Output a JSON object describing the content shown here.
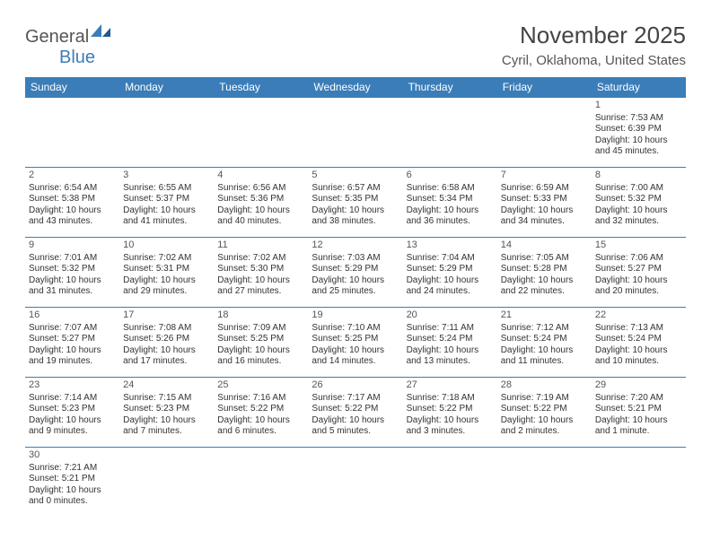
{
  "brand": {
    "part1": "General",
    "part2": "Blue"
  },
  "header": {
    "month_title": "November 2025",
    "location": "Cyril, Oklahoma, United States"
  },
  "theme": {
    "header_bg": "#3b7db8",
    "header_fg": "#ffffff",
    "cell_border": "#3b7db8",
    "text": "#333333",
    "muted": "#555555",
    "background": "#ffffff"
  },
  "calendar": {
    "day_headers": [
      "Sunday",
      "Monday",
      "Tuesday",
      "Wednesday",
      "Thursday",
      "Friday",
      "Saturday"
    ],
    "weeks": [
      [
        null,
        null,
        null,
        null,
        null,
        null,
        {
          "n": "1",
          "sr": "7:53 AM",
          "ss": "6:39 PM",
          "dl": "10 hours and 45 minutes."
        }
      ],
      [
        {
          "n": "2",
          "sr": "6:54 AM",
          "ss": "5:38 PM",
          "dl": "10 hours and 43 minutes."
        },
        {
          "n": "3",
          "sr": "6:55 AM",
          "ss": "5:37 PM",
          "dl": "10 hours and 41 minutes."
        },
        {
          "n": "4",
          "sr": "6:56 AM",
          "ss": "5:36 PM",
          "dl": "10 hours and 40 minutes."
        },
        {
          "n": "5",
          "sr": "6:57 AM",
          "ss": "5:35 PM",
          "dl": "10 hours and 38 minutes."
        },
        {
          "n": "6",
          "sr": "6:58 AM",
          "ss": "5:34 PM",
          "dl": "10 hours and 36 minutes."
        },
        {
          "n": "7",
          "sr": "6:59 AM",
          "ss": "5:33 PM",
          "dl": "10 hours and 34 minutes."
        },
        {
          "n": "8",
          "sr": "7:00 AM",
          "ss": "5:32 PM",
          "dl": "10 hours and 32 minutes."
        }
      ],
      [
        {
          "n": "9",
          "sr": "7:01 AM",
          "ss": "5:32 PM",
          "dl": "10 hours and 31 minutes."
        },
        {
          "n": "10",
          "sr": "7:02 AM",
          "ss": "5:31 PM",
          "dl": "10 hours and 29 minutes."
        },
        {
          "n": "11",
          "sr": "7:02 AM",
          "ss": "5:30 PM",
          "dl": "10 hours and 27 minutes."
        },
        {
          "n": "12",
          "sr": "7:03 AM",
          "ss": "5:29 PM",
          "dl": "10 hours and 25 minutes."
        },
        {
          "n": "13",
          "sr": "7:04 AM",
          "ss": "5:29 PM",
          "dl": "10 hours and 24 minutes."
        },
        {
          "n": "14",
          "sr": "7:05 AM",
          "ss": "5:28 PM",
          "dl": "10 hours and 22 minutes."
        },
        {
          "n": "15",
          "sr": "7:06 AM",
          "ss": "5:27 PM",
          "dl": "10 hours and 20 minutes."
        }
      ],
      [
        {
          "n": "16",
          "sr": "7:07 AM",
          "ss": "5:27 PM",
          "dl": "10 hours and 19 minutes."
        },
        {
          "n": "17",
          "sr": "7:08 AM",
          "ss": "5:26 PM",
          "dl": "10 hours and 17 minutes."
        },
        {
          "n": "18",
          "sr": "7:09 AM",
          "ss": "5:25 PM",
          "dl": "10 hours and 16 minutes."
        },
        {
          "n": "19",
          "sr": "7:10 AM",
          "ss": "5:25 PM",
          "dl": "10 hours and 14 minutes."
        },
        {
          "n": "20",
          "sr": "7:11 AM",
          "ss": "5:24 PM",
          "dl": "10 hours and 13 minutes."
        },
        {
          "n": "21",
          "sr": "7:12 AM",
          "ss": "5:24 PM",
          "dl": "10 hours and 11 minutes."
        },
        {
          "n": "22",
          "sr": "7:13 AM",
          "ss": "5:24 PM",
          "dl": "10 hours and 10 minutes."
        }
      ],
      [
        {
          "n": "23",
          "sr": "7:14 AM",
          "ss": "5:23 PM",
          "dl": "10 hours and 9 minutes."
        },
        {
          "n": "24",
          "sr": "7:15 AM",
          "ss": "5:23 PM",
          "dl": "10 hours and 7 minutes."
        },
        {
          "n": "25",
          "sr": "7:16 AM",
          "ss": "5:22 PM",
          "dl": "10 hours and 6 minutes."
        },
        {
          "n": "26",
          "sr": "7:17 AM",
          "ss": "5:22 PM",
          "dl": "10 hours and 5 minutes."
        },
        {
          "n": "27",
          "sr": "7:18 AM",
          "ss": "5:22 PM",
          "dl": "10 hours and 3 minutes."
        },
        {
          "n": "28",
          "sr": "7:19 AM",
          "ss": "5:22 PM",
          "dl": "10 hours and 2 minutes."
        },
        {
          "n": "29",
          "sr": "7:20 AM",
          "ss": "5:21 PM",
          "dl": "10 hours and 1 minute."
        }
      ],
      [
        {
          "n": "30",
          "sr": "7:21 AM",
          "ss": "5:21 PM",
          "dl": "10 hours and 0 minutes."
        },
        null,
        null,
        null,
        null,
        null,
        null
      ]
    ],
    "labels": {
      "sunrise": "Sunrise:",
      "sunset": "Sunset:",
      "daylight": "Daylight:"
    }
  }
}
